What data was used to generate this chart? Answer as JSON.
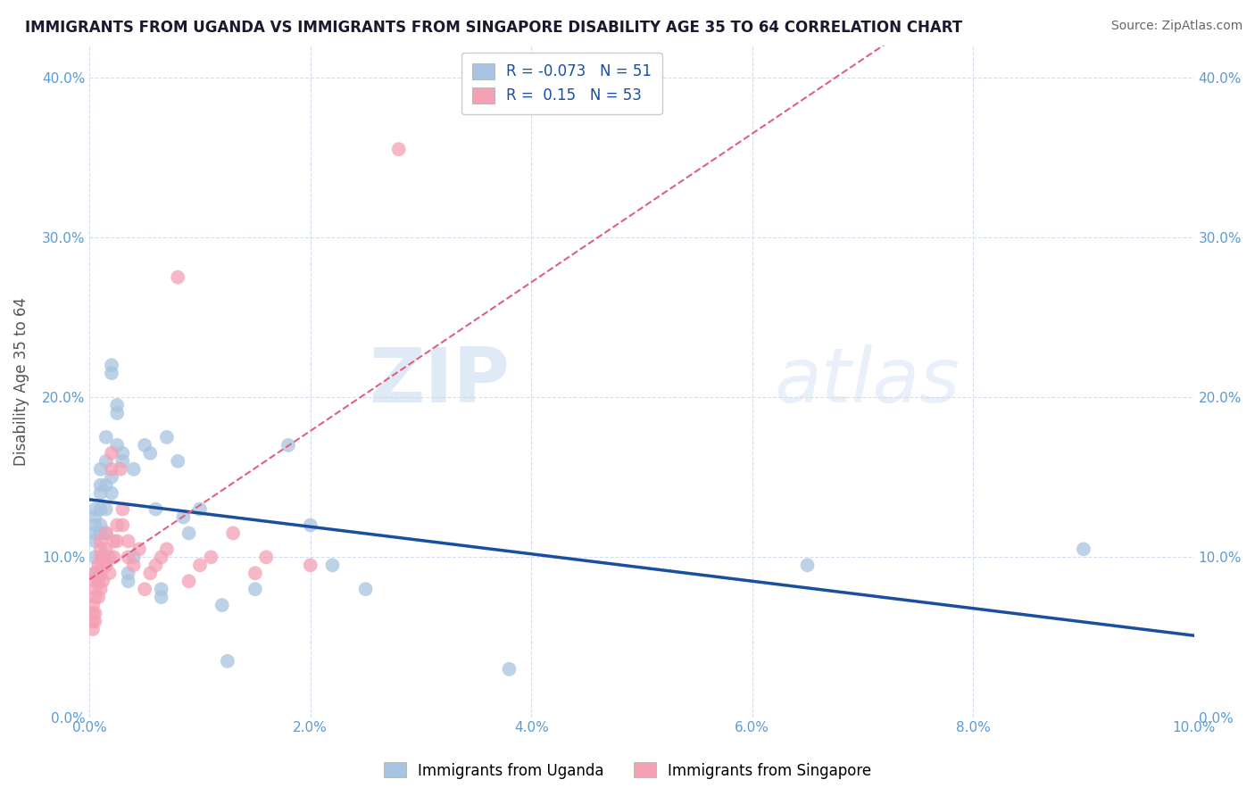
{
  "title": "IMMIGRANTS FROM UGANDA VS IMMIGRANTS FROM SINGAPORE DISABILITY AGE 35 TO 64 CORRELATION CHART",
  "source": "Source: ZipAtlas.com",
  "ylabel": "Disability Age 35 to 64",
  "xlim": [
    0.0,
    0.1
  ],
  "ylim": [
    0.0,
    0.42
  ],
  "xticks": [
    0.0,
    0.02,
    0.04,
    0.06,
    0.08,
    0.1
  ],
  "yticks": [
    0.0,
    0.1,
    0.2,
    0.3,
    0.4
  ],
  "uganda_color": "#a8c4e0",
  "singapore_color": "#f4a0b5",
  "uganda_R": -0.073,
  "uganda_N": 51,
  "singapore_R": 0.15,
  "singapore_N": 53,
  "uganda_line_color": "#1a4fa0",
  "singapore_line_color": "#e06080",
  "watermark_zip": "ZIP",
  "watermark_atlas": "atlas",
  "uganda_x": [
    0.0005,
    0.0005,
    0.0005,
    0.0005,
    0.0005,
    0.0005,
    0.0005,
    0.001,
    0.001,
    0.001,
    0.001,
    0.001,
    0.001,
    0.0015,
    0.0015,
    0.0015,
    0.0015,
    0.0015,
    0.002,
    0.002,
    0.002,
    0.002,
    0.0025,
    0.0025,
    0.0025,
    0.003,
    0.003,
    0.0035,
    0.0035,
    0.004,
    0.004,
    0.005,
    0.0055,
    0.006,
    0.0065,
    0.0065,
    0.007,
    0.008,
    0.0085,
    0.009,
    0.01,
    0.012,
    0.0125,
    0.015,
    0.018,
    0.02,
    0.022,
    0.025,
    0.038,
    0.065,
    0.09
  ],
  "uganda_y": [
    0.13,
    0.125,
    0.12,
    0.115,
    0.11,
    0.1,
    0.09,
    0.155,
    0.145,
    0.14,
    0.13,
    0.12,
    0.115,
    0.175,
    0.16,
    0.145,
    0.13,
    0.115,
    0.22,
    0.215,
    0.15,
    0.14,
    0.195,
    0.19,
    0.17,
    0.165,
    0.16,
    0.09,
    0.085,
    0.155,
    0.1,
    0.17,
    0.165,
    0.13,
    0.08,
    0.075,
    0.175,
    0.16,
    0.125,
    0.115,
    0.13,
    0.07,
    0.035,
    0.08,
    0.17,
    0.12,
    0.095,
    0.08,
    0.03,
    0.095,
    0.105
  ],
  "singapore_x": [
    0.0003,
    0.0003,
    0.0003,
    0.0003,
    0.0005,
    0.0005,
    0.0005,
    0.0005,
    0.0005,
    0.0005,
    0.0008,
    0.0008,
    0.0008,
    0.001,
    0.001,
    0.001,
    0.001,
    0.001,
    0.0012,
    0.0012,
    0.0012,
    0.0015,
    0.0015,
    0.0015,
    0.0018,
    0.0018,
    0.002,
    0.002,
    0.0022,
    0.0022,
    0.0025,
    0.0025,
    0.0028,
    0.003,
    0.003,
    0.0035,
    0.0035,
    0.004,
    0.0045,
    0.005,
    0.0055,
    0.006,
    0.0065,
    0.007,
    0.008,
    0.009,
    0.01,
    0.011,
    0.013,
    0.015,
    0.016,
    0.02,
    0.028
  ],
  "singapore_y": [
    0.07,
    0.065,
    0.06,
    0.055,
    0.09,
    0.085,
    0.08,
    0.075,
    0.065,
    0.06,
    0.095,
    0.085,
    0.075,
    0.11,
    0.105,
    0.1,
    0.09,
    0.08,
    0.1,
    0.095,
    0.085,
    0.115,
    0.105,
    0.095,
    0.1,
    0.09,
    0.165,
    0.155,
    0.11,
    0.1,
    0.12,
    0.11,
    0.155,
    0.13,
    0.12,
    0.11,
    0.1,
    0.095,
    0.105,
    0.08,
    0.09,
    0.095,
    0.1,
    0.105,
    0.275,
    0.085,
    0.095,
    0.1,
    0.115,
    0.09,
    0.1,
    0.095,
    0.355
  ]
}
